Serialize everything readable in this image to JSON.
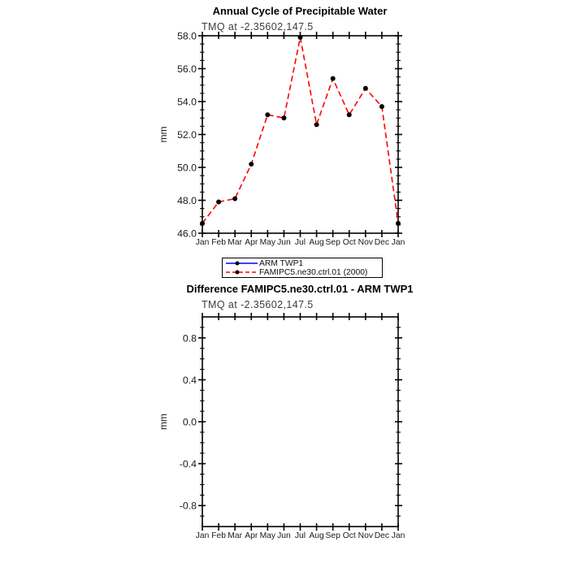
{
  "figure": {
    "background": "#ffffff",
    "axis_color": "#000000",
    "subtitle_color": "#3d3d3d"
  },
  "chart_data": [
    {
      "type": "line",
      "title": "Annual Cycle of Precipitable Water",
      "subtitle": "TMQ at -2.35602,147.5",
      "xlabel": "",
      "ylabel": "mm",
      "categories": [
        "Jan",
        "Feb",
        "Mar",
        "Apr",
        "May",
        "Jun",
        "Jul",
        "Aug",
        "Sep",
        "Oct",
        "Nov",
        "Dec",
        "Jan"
      ],
      "ylim": [
        46.0,
        58.0
      ],
      "ytick_values": [
        46,
        48,
        50,
        52,
        54,
        56,
        58
      ],
      "ytick_labels": [
        "46.0",
        "48.0",
        "50.0",
        "52.0",
        "54.0",
        "56.0",
        "58.0"
      ],
      "yminor_step": 0.5,
      "grid": false,
      "legend_position": "below",
      "series": [
        {
          "name": "ARM TWP1",
          "color": "#0000ff",
          "line_style": "solid",
          "marker": "filled-circle",
          "marker_color": "#000000",
          "values": []
        },
        {
          "name": "FAMIPC5.ne30.ctrl.01 (2000)",
          "color": "#ff0000",
          "line_style": "dashed",
          "marker": "filled-circle",
          "marker_color": "#000000",
          "values": [
            46.6,
            47.9,
            48.1,
            50.2,
            53.2,
            53.0,
            57.9,
            52.6,
            55.4,
            53.2,
            54.8,
            53.7,
            46.6
          ]
        }
      ]
    },
    {
      "type": "line",
      "title": "Difference FAMIPC5.ne30.ctrl.01 - ARM TWP1",
      "subtitle": "TMQ at -2.35602,147.5",
      "xlabel": "",
      "ylabel": "mm",
      "categories": [
        "Jan",
        "Feb",
        "Mar",
        "Apr",
        "May",
        "Jun",
        "Jul",
        "Aug",
        "Sep",
        "Oct",
        "Nov",
        "Dec",
        "Jan"
      ],
      "ylim": [
        -1.0,
        1.0
      ],
      "ytick_values": [
        -0.8,
        -0.4,
        0.0,
        0.4,
        0.8
      ],
      "ytick_labels": [
        "-0.8",
        "-0.4",
        "0.0",
        "0.4",
        "0.8"
      ],
      "yminor_step": 0.1,
      "grid": false,
      "series": []
    }
  ]
}
